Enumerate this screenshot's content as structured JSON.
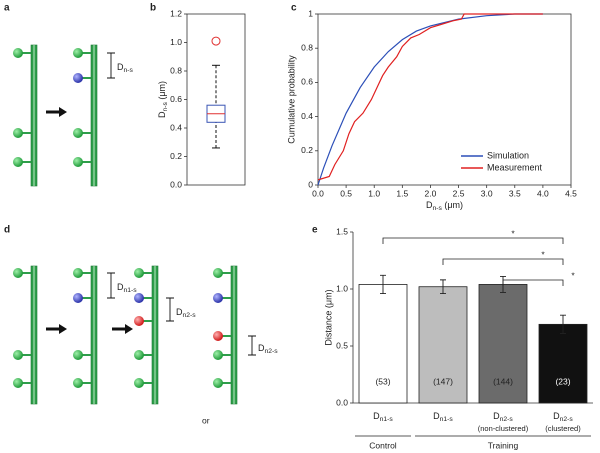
{
  "panel_labels": [
    "a",
    "b",
    "c",
    "d",
    "e"
  ],
  "diagram_a": {
    "labels": [
      {
        "base": "D",
        "sub": "n-s"
      }
    ]
  },
  "diagram_d": {
    "labels": [
      {
        "base": "D",
        "sub": "n1-s"
      },
      {
        "base": "D",
        "sub": "n2-s"
      },
      {
        "base": "D",
        "sub": "n2-s"
      }
    ],
    "or": "or"
  },
  "chart_data": [
    {
      "type": "box",
      "ylabel": {
        "base": "D",
        "sub": "n-s",
        "unit": " (μm)"
      },
      "ylim": [
        0,
        1.2
      ],
      "yticks": [
        {
          "value": 0,
          "label": "0.0"
        },
        0.2,
        0.4,
        0.6,
        0.8,
        {
          "value": 1,
          "label": "1.0"
        },
        1.2
      ],
      "boxes": [
        {
          "whisker_low": 0.26,
          "q1": 0.44,
          "median": 0.5,
          "q3": 0.56,
          "whisker_high": 0.84,
          "outliers": [
            1.01
          ]
        }
      ],
      "box_color": "#3a55b4",
      "median_color": "#e03030",
      "outlier_color": "#e03030"
    },
    {
      "type": "line",
      "ylabel": "Cumulative probability",
      "xlabel": {
        "base": "D",
        "sub": "n-s",
        "unit": " (μm)"
      },
      "xlim": [
        0,
        4.5
      ],
      "xticks": [
        {
          "value": 0,
          "label": "0.0"
        },
        0.5,
        {
          "value": 1,
          "label": "1.0"
        },
        1.5,
        {
          "value": 2,
          "label": "2.0"
        },
        2.5,
        {
          "value": 3,
          "label": "3.0"
        },
        3.5,
        {
          "value": 4,
          "label": "4.0"
        },
        4.5
      ],
      "ylim": [
        0,
        1
      ],
      "yticks": [
        0,
        0.2,
        0.4,
        0.6,
        0.8,
        1
      ],
      "legend": "lower-right",
      "series": [
        {
          "name": "Simulation",
          "color": "#2c4fb8",
          "x": [
            0,
            0.1,
            0.25,
            0.5,
            0.75,
            1.0,
            1.25,
            1.5,
            1.75,
            2.0,
            2.5,
            3.0,
            3.5,
            4.0
          ],
          "values": [
            0,
            0.1,
            0.23,
            0.42,
            0.57,
            0.69,
            0.78,
            0.85,
            0.9,
            0.93,
            0.97,
            0.99,
            1.0,
            1.0
          ]
        },
        {
          "name": "Measurement",
          "color": "#e02020",
          "x": [
            0,
            0.2,
            0.3,
            0.45,
            0.55,
            0.65,
            0.8,
            0.95,
            1.05,
            1.15,
            1.25,
            1.4,
            1.5,
            1.65,
            1.8,
            2.0,
            2.2,
            2.4,
            2.55,
            2.6,
            4.0
          ],
          "values": [
            0.03,
            0.05,
            0.12,
            0.2,
            0.3,
            0.37,
            0.42,
            0.5,
            0.57,
            0.64,
            0.69,
            0.75,
            0.81,
            0.86,
            0.88,
            0.92,
            0.94,
            0.96,
            0.97,
            1.0,
            1.0
          ]
        }
      ]
    },
    {
      "type": "bar",
      "ylabel": "Distance (μm)",
      "ylim": [
        0,
        1.5
      ],
      "yticks": [
        {
          "value": 0,
          "label": "0.0"
        },
        0.5,
        {
          "value": 1,
          "label": "1.0"
        },
        1.5
      ],
      "categories": [
        {
          "base": "D",
          "sub": "n1-s"
        },
        {
          "base": "D",
          "sub": "n1-s"
        },
        {
          "base": "D",
          "sub": "n2-s",
          "note": "(non-clustered)"
        },
        {
          "base": "D",
          "sub": "n2-s",
          "note": "(clustered)"
        }
      ],
      "values": [
        1.04,
        1.02,
        1.04,
        0.69
      ],
      "errors": [
        0.08,
        0.06,
        0.07,
        0.08
      ],
      "colors": [
        "#ffffff",
        "#bdbdbd",
        "#6b6b6b",
        "#111111"
      ],
      "n_labels": [
        "(53)",
        "(147)",
        "(144)",
        "(23)"
      ],
      "groups": [
        {
          "label": "Control",
          "span": [
            0,
            0
          ]
        },
        {
          "label": "Training",
          "span": [
            1,
            3
          ]
        }
      ],
      "comparisons": [
        {
          "pair": [
            0,
            3
          ],
          "label": "*"
        },
        {
          "pair": [
            1,
            3
          ],
          "label": "*"
        },
        {
          "pair": [
            2,
            3
          ],
          "label": "*"
        }
      ]
    }
  ]
}
